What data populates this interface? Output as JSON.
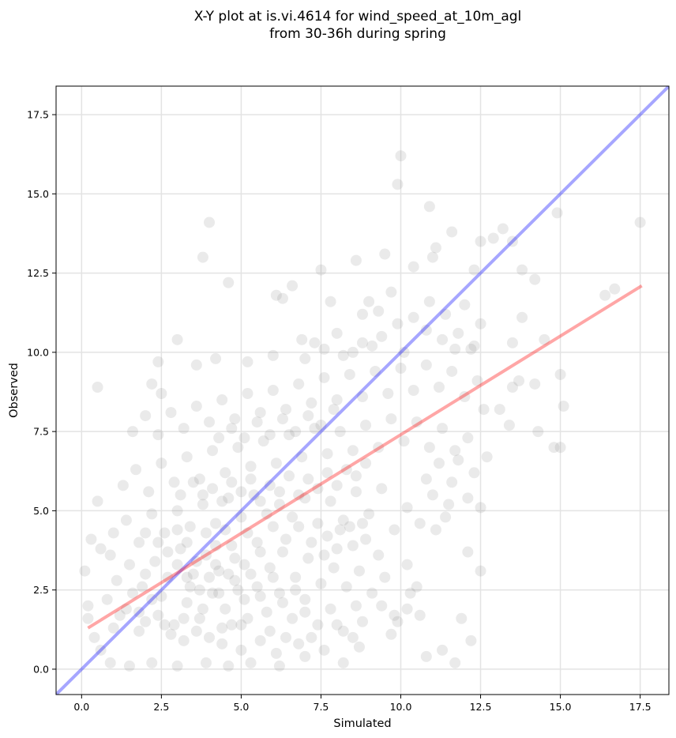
{
  "chart_data": {
    "type": "scatter",
    "title_line1": "X-Y plot at is.vi.4614 for wind_speed_at_10m_agl",
    "title_line2": "from 30-36h during spring",
    "xlabel": "Simulated",
    "ylabel": "Observed",
    "xlim": [
      -0.8,
      18.4
    ],
    "ylim": [
      -0.8,
      18.4
    ],
    "xticks": [
      0.0,
      2.5,
      5.0,
      7.5,
      10.0,
      12.5,
      15.0,
      17.5
    ],
    "yticks": [
      0.0,
      2.5,
      5.0,
      7.5,
      10.0,
      12.5,
      15.0,
      17.5
    ],
    "xtick_labels": [
      "0.0",
      "2.5",
      "5.0",
      "7.5",
      "10.0",
      "12.5",
      "15.0",
      "17.5"
    ],
    "ytick_labels": [
      "0.0",
      "2.5",
      "5.0",
      "7.5",
      "10.0",
      "12.5",
      "15.0",
      "17.5"
    ],
    "grid": true,
    "point_color": "#808080",
    "one_to_one_color": "#0000ff",
    "fit_color": "#ff0000",
    "one_to_one_line": {
      "x": [
        -0.8,
        18.4
      ],
      "y": [
        -0.8,
        18.4
      ]
    },
    "fit_line": {
      "x": [
        0.2,
        17.55
      ],
      "y": [
        1.3,
        12.1
      ]
    },
    "points": [
      [
        10.0,
        16.2
      ],
      [
        9.9,
        15.3
      ],
      [
        4.0,
        14.1
      ],
      [
        17.5,
        14.1
      ],
      [
        10.9,
        14.6
      ],
      [
        14.9,
        14.4
      ],
      [
        13.2,
        13.9
      ],
      [
        13.5,
        13.5
      ],
      [
        11.1,
        13.3
      ],
      [
        12.9,
        13.6
      ],
      [
        3.8,
        13.0
      ],
      [
        9.5,
        13.1
      ],
      [
        12.5,
        13.5
      ],
      [
        11.6,
        13.8
      ],
      [
        4.6,
        12.2
      ],
      [
        7.5,
        12.6
      ],
      [
        8.6,
        12.9
      ],
      [
        10.4,
        12.7
      ],
      [
        11.0,
        13.0
      ],
      [
        12.3,
        12.6
      ],
      [
        16.7,
        12.0
      ],
      [
        16.4,
        11.8
      ],
      [
        13.8,
        12.6
      ],
      [
        14.2,
        12.3
      ],
      [
        6.6,
        12.1
      ],
      [
        6.3,
        11.7
      ],
      [
        7.8,
        11.6
      ],
      [
        9.7,
        11.9
      ],
      [
        12.0,
        11.5
      ],
      [
        6.1,
        11.8
      ],
      [
        10.9,
        11.6
      ],
      [
        11.4,
        11.2
      ],
      [
        9.3,
        11.3
      ],
      [
        8.8,
        11.2
      ],
      [
        13.8,
        11.1
      ],
      [
        12.5,
        10.9
      ],
      [
        14.5,
        10.4
      ],
      [
        3.0,
        10.4
      ],
      [
        4.2,
        9.8
      ],
      [
        2.4,
        9.7
      ],
      [
        3.6,
        9.6
      ],
      [
        5.2,
        9.7
      ],
      [
        6.0,
        9.9
      ],
      [
        6.9,
        10.4
      ],
      [
        7.3,
        10.3
      ],
      [
        8.0,
        10.6
      ],
      [
        8.5,
        10.0
      ],
      [
        9.1,
        10.2
      ],
      [
        10.1,
        10.0
      ],
      [
        11.7,
        10.1
      ],
      [
        12.2,
        10.1
      ],
      [
        13.5,
        10.3
      ],
      [
        15.0,
        9.3
      ],
      [
        13.7,
        9.1
      ],
      [
        13.5,
        8.9
      ],
      [
        14.2,
        9.0
      ],
      [
        15.1,
        8.3
      ],
      [
        12.6,
        8.2
      ],
      [
        13.1,
        8.2
      ],
      [
        13.4,
        7.7
      ],
      [
        14.3,
        7.5
      ],
      [
        15.0,
        7.0
      ],
      [
        14.8,
        7.0
      ],
      [
        12.7,
        6.7
      ],
      [
        12.5,
        5.1
      ],
      [
        12.1,
        5.4
      ],
      [
        11.5,
        5.2
      ],
      [
        11.1,
        4.4
      ],
      [
        12.1,
        3.7
      ],
      [
        12.5,
        3.1
      ],
      [
        11.9,
        1.6
      ],
      [
        11.3,
        0.6
      ],
      [
        12.2,
        0.9
      ],
      [
        11.7,
        0.2
      ],
      [
        10.8,
        0.4
      ],
      [
        9.9,
        1.5
      ],
      [
        10.2,
        1.9
      ],
      [
        8.5,
        1.0
      ],
      [
        8.7,
        0.7
      ],
      [
        8.2,
        0.2
      ],
      [
        0.5,
        8.9
      ],
      [
        2.5,
        8.7
      ],
      [
        2.2,
        9.0
      ],
      [
        0.5,
        5.3
      ],
      [
        0.3,
        4.1
      ],
      [
        0.6,
        3.8
      ],
      [
        0.1,
        3.1
      ],
      [
        0.2,
        2.0
      ],
      [
        0.2,
        1.6
      ],
      [
        0.4,
        1.0
      ],
      [
        0.6,
        0.6
      ],
      [
        0.9,
        0.2
      ],
      [
        1.5,
        0.1
      ],
      [
        2.2,
        0.2
      ],
      [
        3.0,
        0.1
      ],
      [
        3.9,
        0.2
      ],
      [
        4.6,
        0.1
      ],
      [
        5.3,
        0.2
      ],
      [
        6.2,
        0.1
      ],
      [
        7.0,
        0.4
      ],
      [
        1.0,
        1.3
      ],
      [
        1.4,
        1.9
      ],
      [
        1.8,
        1.2
      ],
      [
        2.4,
        1.7
      ],
      [
        2.9,
        1.4
      ],
      [
        3.3,
        2.1
      ],
      [
        3.7,
        1.6
      ],
      [
        4.1,
        2.4
      ],
      [
        4.5,
        1.9
      ],
      [
        4.8,
        2.8
      ],
      [
        5.1,
        2.2
      ],
      [
        5.5,
        2.6
      ],
      [
        5.8,
        1.8
      ],
      [
        6.2,
        2.4
      ],
      [
        6.6,
        1.6
      ],
      [
        7.0,
        2.2
      ],
      [
        7.4,
        1.4
      ],
      [
        7.8,
        1.9
      ],
      [
        8.2,
        1.2
      ],
      [
        8.6,
        2.0
      ],
      [
        1.1,
        2.8
      ],
      [
        1.5,
        3.3
      ],
      [
        1.9,
        2.6
      ],
      [
        2.3,
        3.4
      ],
      [
        2.7,
        2.9
      ],
      [
        3.1,
        3.8
      ],
      [
        3.5,
        3.0
      ],
      [
        3.9,
        3.6
      ],
      [
        4.3,
        3.1
      ],
      [
        4.7,
        3.9
      ],
      [
        5.1,
        3.3
      ],
      [
        5.5,
        4.0
      ],
      [
        5.9,
        3.2
      ],
      [
        6.3,
        3.7
      ],
      [
        6.7,
        2.9
      ],
      [
        7.1,
        3.5
      ],
      [
        7.5,
        2.7
      ],
      [
        7.9,
        3.2
      ],
      [
        8.3,
        2.6
      ],
      [
        8.7,
        3.1
      ],
      [
        9.1,
        2.4
      ],
      [
        9.5,
        2.9
      ],
      [
        9.8,
        1.7
      ],
      [
        10.2,
        3.3
      ],
      [
        10.5,
        2.6
      ],
      [
        9.3,
        3.6
      ],
      [
        8.9,
        4.1
      ],
      [
        8.5,
        3.9
      ],
      [
        8.1,
        4.4
      ],
      [
        7.7,
        4.2
      ],
      [
        1.0,
        4.3
      ],
      [
        1.4,
        4.7
      ],
      [
        1.8,
        4.0
      ],
      [
        2.2,
        4.9
      ],
      [
        2.6,
        4.3
      ],
      [
        3.0,
        5.0
      ],
      [
        3.4,
        4.5
      ],
      [
        3.8,
        5.2
      ],
      [
        4.2,
        4.6
      ],
      [
        4.6,
        5.4
      ],
      [
        5.0,
        4.8
      ],
      [
        5.4,
        5.5
      ],
      [
        5.8,
        4.9
      ],
      [
        6.2,
        5.6
      ],
      [
        6.6,
        4.8
      ],
      [
        7.0,
        5.4
      ],
      [
        7.4,
        4.6
      ],
      [
        7.8,
        5.3
      ],
      [
        8.2,
        4.7
      ],
      [
        8.6,
        5.6
      ],
      [
        9.0,
        4.9
      ],
      [
        9.4,
        5.7
      ],
      [
        9.8,
        4.4
      ],
      [
        10.2,
        5.1
      ],
      [
        10.6,
        4.6
      ],
      [
        11.0,
        5.5
      ],
      [
        11.4,
        4.8
      ],
      [
        10.8,
        6.0
      ],
      [
        11.2,
        6.5
      ],
      [
        11.6,
        5.9
      ],
      [
        1.3,
        5.8
      ],
      [
        1.7,
        6.3
      ],
      [
        2.1,
        5.6
      ],
      [
        2.5,
        6.5
      ],
      [
        2.9,
        5.9
      ],
      [
        3.3,
        6.7
      ],
      [
        3.7,
        6.0
      ],
      [
        4.1,
        6.9
      ],
      [
        4.5,
        6.2
      ],
      [
        4.9,
        7.0
      ],
      [
        5.3,
        6.4
      ],
      [
        5.7,
        7.2
      ],
      [
        6.1,
        6.5
      ],
      [
        6.5,
        7.4
      ],
      [
        6.9,
        6.7
      ],
      [
        7.3,
        7.6
      ],
      [
        7.7,
        6.8
      ],
      [
        8.1,
        7.5
      ],
      [
        8.5,
        6.9
      ],
      [
        8.9,
        7.7
      ],
      [
        9.3,
        7.0
      ],
      [
        9.7,
        7.9
      ],
      [
        10.1,
        7.2
      ],
      [
        10.5,
        7.8
      ],
      [
        10.9,
        7.0
      ],
      [
        11.3,
        7.6
      ],
      [
        11.7,
        6.9
      ],
      [
        12.1,
        7.3
      ],
      [
        12.3,
        6.2
      ],
      [
        11.8,
        6.6
      ],
      [
        1.6,
        7.5
      ],
      [
        2.0,
        8.0
      ],
      [
        2.4,
        7.4
      ],
      [
        2.8,
        8.1
      ],
      [
        3.2,
        7.6
      ],
      [
        3.6,
        8.3
      ],
      [
        4.0,
        7.8
      ],
      [
        4.4,
        8.5
      ],
      [
        4.8,
        7.9
      ],
      [
        5.2,
        8.7
      ],
      [
        5.6,
        8.1
      ],
      [
        6.0,
        8.8
      ],
      [
        6.4,
        8.2
      ],
      [
        6.8,
        9.0
      ],
      [
        7.2,
        8.4
      ],
      [
        7.6,
        9.2
      ],
      [
        8.0,
        8.5
      ],
      [
        8.4,
        9.3
      ],
      [
        8.8,
        8.6
      ],
      [
        9.2,
        9.4
      ],
      [
        9.6,
        8.7
      ],
      [
        10.0,
        9.5
      ],
      [
        10.4,
        8.8
      ],
      [
        10.8,
        9.6
      ],
      [
        11.2,
        8.9
      ],
      [
        11.6,
        9.4
      ],
      [
        12.0,
        8.6
      ],
      [
        12.4,
        9.1
      ],
      [
        7.0,
        9.8
      ],
      [
        7.6,
        10.1
      ],
      [
        8.2,
        9.9
      ],
      [
        8.8,
        10.3
      ],
      [
        9.4,
        10.5
      ],
      [
        9.9,
        10.9
      ],
      [
        10.4,
        11.1
      ],
      [
        10.8,
        10.7
      ],
      [
        11.3,
        10.4
      ],
      [
        11.8,
        10.6
      ],
      [
        12.3,
        10.2
      ],
      [
        9.0,
        11.6
      ],
      [
        0.8,
        2.2
      ],
      [
        0.9,
        3.6
      ],
      [
        1.2,
        1.7
      ],
      [
        1.6,
        2.4
      ],
      [
        2.0,
        1.5
      ],
      [
        2.0,
        3.0
      ],
      [
        2.5,
        2.3
      ],
      [
        2.8,
        1.1
      ],
      [
        3.2,
        0.9
      ],
      [
        3.4,
        2.6
      ],
      [
        3.6,
        1.2
      ],
      [
        4.0,
        1.0
      ],
      [
        4.2,
        3.3
      ],
      [
        4.4,
        0.8
      ],
      [
        4.7,
        1.4
      ],
      [
        5.0,
        0.6
      ],
      [
        5.2,
        1.6
      ],
      [
        5.6,
        0.9
      ],
      [
        5.9,
        1.2
      ],
      [
        6.1,
        0.5
      ],
      [
        6.4,
        1.0
      ],
      [
        6.8,
        0.8
      ],
      [
        7.2,
        1.0
      ],
      [
        7.6,
        0.6
      ],
      [
        8.0,
        1.4
      ],
      [
        8.8,
        1.5
      ],
      [
        9.4,
        2.0
      ],
      [
        9.7,
        1.1
      ],
      [
        10.3,
        2.4
      ],
      [
        10.6,
        1.7
      ],
      [
        2.0,
        4.3
      ],
      [
        2.4,
        4.0
      ],
      [
        2.7,
        3.7
      ],
      [
        3.0,
        4.4
      ],
      [
        3.3,
        4.0
      ],
      [
        3.6,
        3.4
      ],
      [
        3.9,
        4.3
      ],
      [
        4.2,
        3.9
      ],
      [
        4.5,
        4.4
      ],
      [
        4.8,
        3.5
      ],
      [
        5.2,
        4.3
      ],
      [
        5.6,
        3.7
      ],
      [
        6.0,
        4.5
      ],
      [
        6.4,
        4.1
      ],
      [
        6.8,
        4.5
      ],
      [
        7.2,
        4.0
      ],
      [
        7.6,
        3.6
      ],
      [
        8.0,
        3.8
      ],
      [
        8.4,
        4.5
      ],
      [
        8.8,
        4.6
      ],
      [
        3.1,
        5.5
      ],
      [
        3.5,
        5.9
      ],
      [
        3.8,
        5.5
      ],
      [
        4.1,
        5.7
      ],
      [
        4.4,
        5.3
      ],
      [
        4.7,
        5.9
      ],
      [
        5.0,
        5.6
      ],
      [
        5.3,
        6.0
      ],
      [
        5.6,
        5.3
      ],
      [
        5.9,
        5.8
      ],
      [
        6.2,
        5.2
      ],
      [
        6.5,
        6.1
      ],
      [
        6.8,
        5.5
      ],
      [
        7.1,
        6.0
      ],
      [
        7.4,
        5.7
      ],
      [
        7.7,
        6.2
      ],
      [
        8.0,
        5.8
      ],
      [
        8.3,
        6.3
      ],
      [
        8.6,
        6.1
      ],
      [
        8.9,
        6.5
      ],
      [
        4.3,
        7.3
      ],
      [
        4.7,
        7.6
      ],
      [
        5.1,
        7.3
      ],
      [
        5.5,
        7.8
      ],
      [
        5.9,
        7.4
      ],
      [
        6.3,
        7.9
      ],
      [
        6.7,
        7.5
      ],
      [
        7.1,
        8.0
      ],
      [
        7.5,
        7.7
      ],
      [
        7.9,
        8.2
      ],
      [
        3.0,
        3.3
      ],
      [
        3.3,
        2.9
      ],
      [
        3.7,
        2.5
      ],
      [
        4.0,
        2.9
      ],
      [
        4.3,
        2.4
      ],
      [
        4.6,
        3.0
      ],
      [
        4.9,
        2.5
      ],
      [
        5.3,
        3.0
      ],
      [
        5.6,
        2.3
      ],
      [
        6.0,
        2.9
      ],
      [
        6.3,
        2.1
      ],
      [
        6.7,
        2.5
      ],
      [
        7.0,
        1.8
      ],
      [
        5.0,
        1.4
      ],
      [
        4.4,
        1.3
      ],
      [
        3.8,
        1.9
      ],
      [
        3.2,
        1.6
      ],
      [
        2.6,
        1.4
      ],
      [
        2.2,
        2.2
      ],
      [
        1.8,
        1.8
      ]
    ]
  }
}
